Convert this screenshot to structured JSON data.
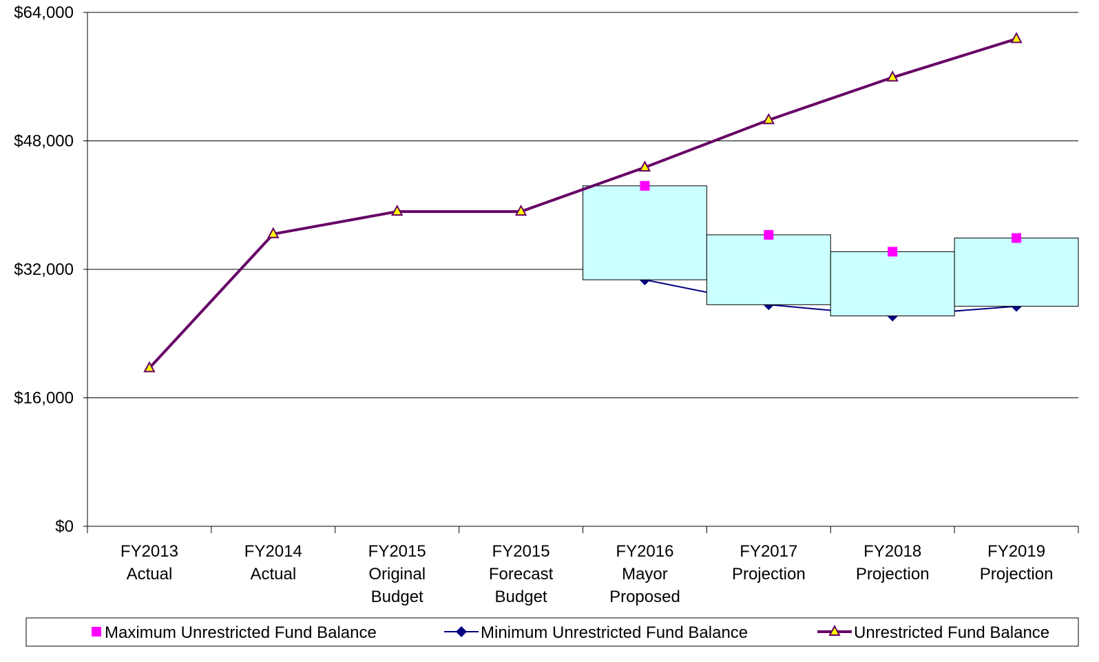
{
  "chart_data": {
    "type": "line",
    "categories": [
      "FY2013 Actual",
      "FY2014 Actual",
      "FY2015 Original Budget",
      "FY2015 Forecast Budget",
      "FY2016 Mayor Proposed",
      "FY2017 Projection",
      "FY2018 Projection",
      "FY2019 Projection"
    ],
    "series": [
      {
        "name": "Maximum Unrestricted Fund Balance",
        "color": "#ff00ff",
        "marker": "square",
        "line": false,
        "values": [
          null,
          null,
          null,
          null,
          42400,
          36300,
          34200,
          35900
        ]
      },
      {
        "name": "Minimum Unrestricted Fund Balance",
        "color": "#000080",
        "marker": "diamond",
        "line": true,
        "values": [
          null,
          null,
          null,
          null,
          30700,
          27600,
          26200,
          27400
        ]
      },
      {
        "name": "Unrestricted Fund Balance",
        "color": "#660066",
        "marker": "triangle",
        "marker_color": "#ffff00",
        "line": true,
        "values": [
          19700,
          36400,
          39200,
          39200,
          44700,
          50600,
          55900,
          60700
        ]
      }
    ],
    "range_box_color": "#ccffff",
    "ylim": [
      0,
      64000
    ],
    "yticks": [
      {
        "value": 0,
        "label": "$0"
      },
      {
        "value": 16000,
        "label": "$16,000"
      },
      {
        "value": 32000,
        "label": "$32,000"
      },
      {
        "value": 48000,
        "label": "$48,000"
      },
      {
        "value": 64000,
        "label": "$64,000"
      }
    ],
    "grid": true
  }
}
